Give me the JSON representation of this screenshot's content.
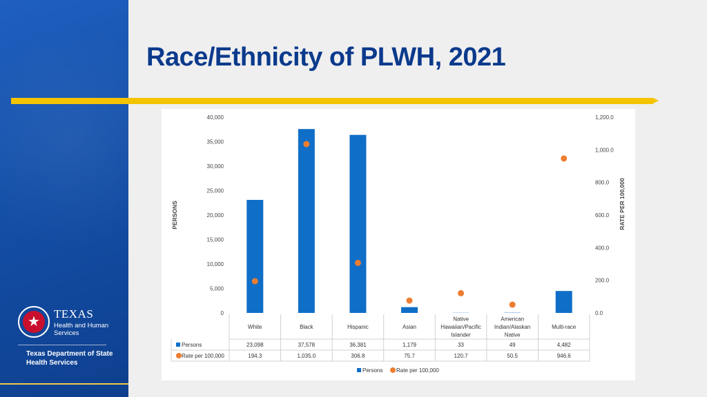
{
  "slide": {
    "title": "Race/Ethnicity of PLWH, 2021"
  },
  "branding": {
    "logo_word": "TEXAS",
    "logo_sub_line1": "Health and Human",
    "logo_sub_line2": "Services",
    "dshs_line1": "Texas Department of State",
    "dshs_line2": "Health Services",
    "seal_icon": "star-seal-icon"
  },
  "colors": {
    "bar": "#0f6ec7",
    "point": "#ed7d31",
    "title": "#0b3a8c",
    "accent_bar": "#f5c400",
    "sidebar": "#1450a8"
  },
  "chart_data": {
    "type": "bar",
    "categories": [
      [
        "White"
      ],
      [
        "Black"
      ],
      [
        "Hispanic"
      ],
      [
        "Asian"
      ],
      [
        "Native",
        "Hawaiian/Pacific",
        "Islander"
      ],
      [
        "American",
        "Indian/Alaskan",
        "Native"
      ],
      [
        "Multi-race"
      ]
    ],
    "series": [
      {
        "name": "Persons",
        "type": "bar",
        "axis": "left",
        "values": [
          23098,
          37578,
          36381,
          1179,
          33,
          49,
          4482
        ],
        "labels": [
          "23,098",
          "37,578",
          "36,381",
          "1,179",
          "33",
          "49",
          "4,482"
        ]
      },
      {
        "name": "Rate per 100,000",
        "type": "scatter",
        "axis": "right",
        "values": [
          194.3,
          1035.0,
          306.8,
          75.7,
          120.7,
          50.5,
          946.6
        ],
        "labels": [
          "194.3",
          "1,035.0",
          "306.8",
          "75.7",
          "120.7",
          "50.5",
          "946.6"
        ]
      }
    ],
    "ylabel": "PERSONS",
    "y2label": "RATE PER 100,000",
    "ylim": [
      0,
      40000
    ],
    "y2lim": [
      0,
      1200
    ],
    "yticks": [
      "0",
      "5,000",
      "10,000",
      "15,000",
      "20,000",
      "25,000",
      "30,000",
      "35,000",
      "40,000"
    ],
    "y2ticks": [
      "0.0",
      "200.0",
      "400.0",
      "600.0",
      "800.0",
      "1,000.0",
      "1,200.0"
    ],
    "legend": {
      "position": "bottom",
      "items": [
        "Persons",
        "Rate per 100,000"
      ]
    },
    "data_table": true
  }
}
